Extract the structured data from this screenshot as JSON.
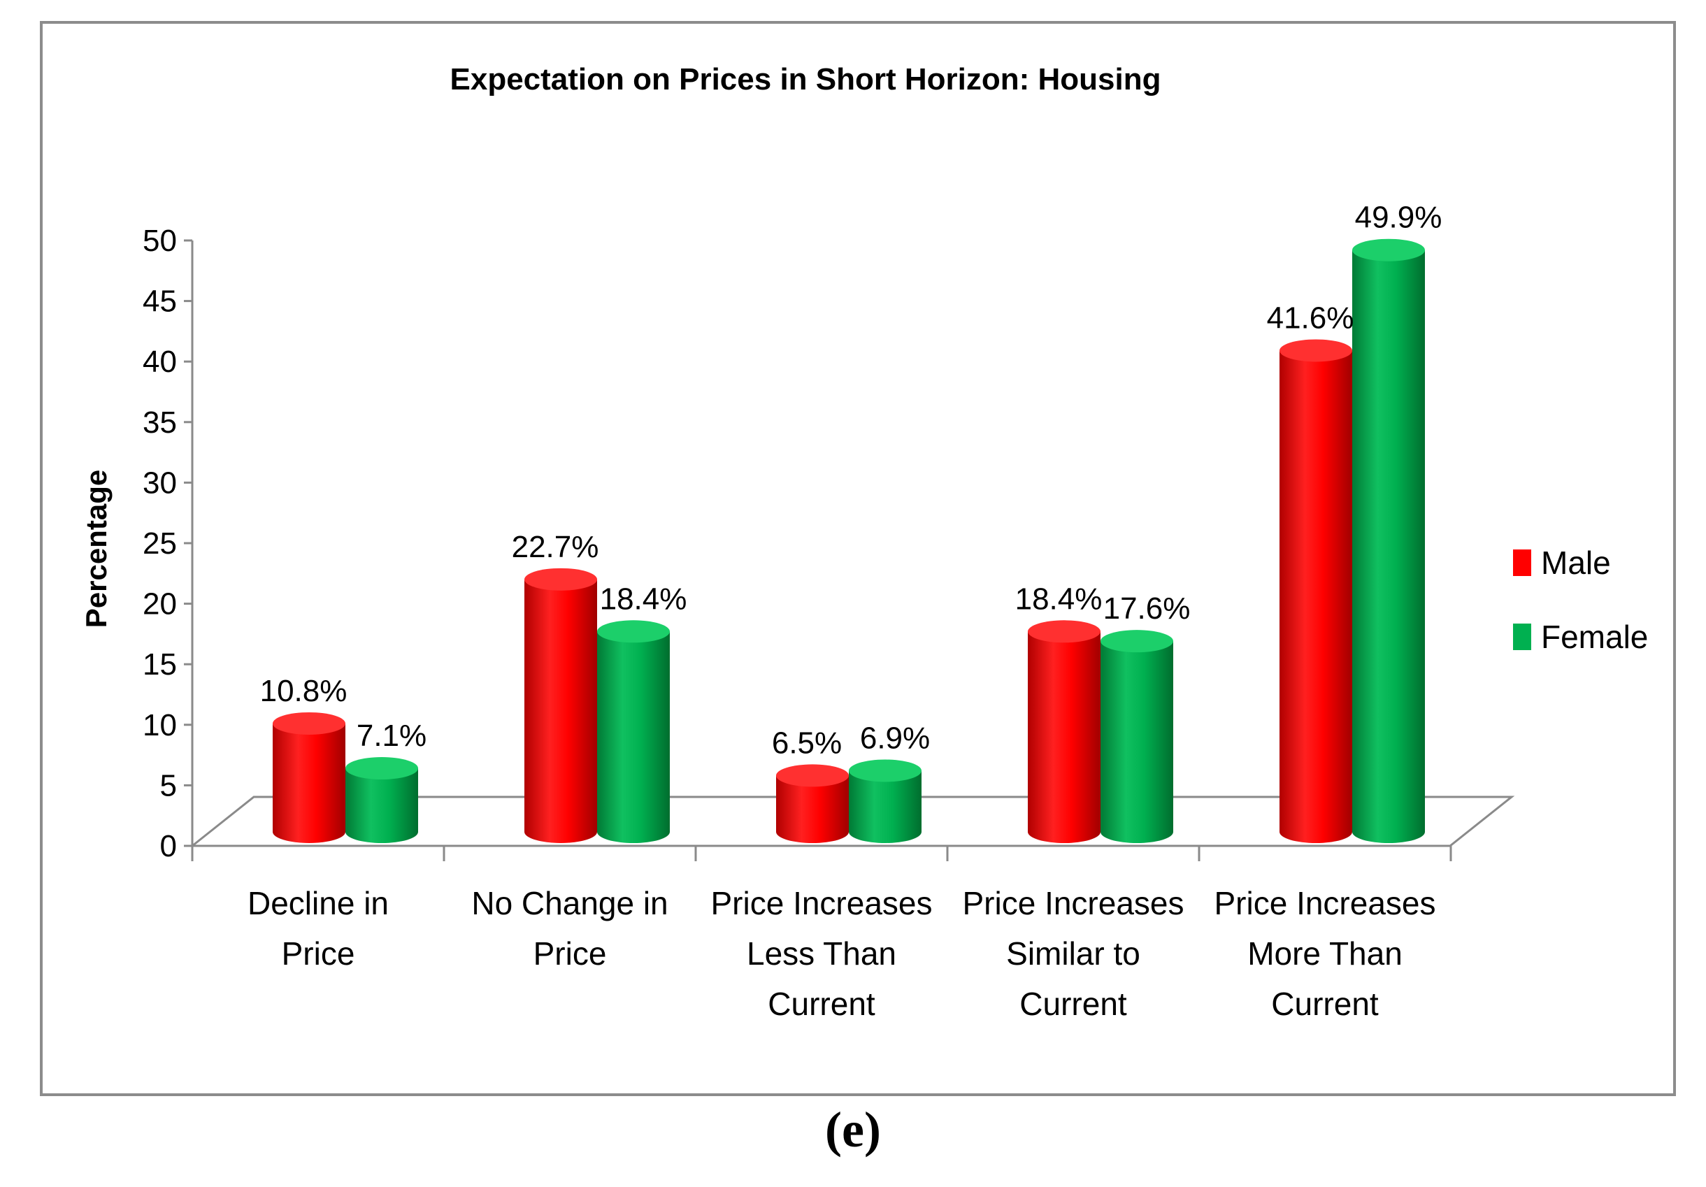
{
  "chart_data": {
    "type": "bar",
    "title": "Expectation on Prices in Short Horizon: Housing",
    "xlabel": "",
    "ylabel": "Percentage",
    "ylim": [
      0,
      50
    ],
    "yticks": [
      "0",
      "5",
      "10",
      "15",
      "20",
      "25",
      "30",
      "35",
      "40",
      "45",
      "50"
    ],
    "categories": [
      [
        "Decline in",
        "Price"
      ],
      [
        "No Change in",
        "Price"
      ],
      [
        "Price Increases",
        "Less Than",
        "Current"
      ],
      [
        "Price Increases",
        "Similar to",
        "Current"
      ],
      [
        "Price Increases",
        "More Than",
        "Current"
      ]
    ],
    "series": [
      {
        "name": "Male",
        "color": "#ff0000",
        "values": [
          10.8,
          22.7,
          6.5,
          18.4,
          41.6
        ],
        "labels": [
          "10.8%",
          "22.7%",
          "6.5%",
          "18.4%",
          "41.6%"
        ]
      },
      {
        "name": "Female",
        "color": "#00b050",
        "values": [
          7.1,
          18.4,
          6.9,
          17.6,
          49.9
        ],
        "labels": [
          "7.1%",
          "18.4%",
          "6.9%",
          "17.6%",
          "49.9%"
        ]
      }
    ],
    "legend_position": "right",
    "grid": false
  },
  "caption": {
    "open": "(",
    "letter": "e",
    "close": ")"
  }
}
